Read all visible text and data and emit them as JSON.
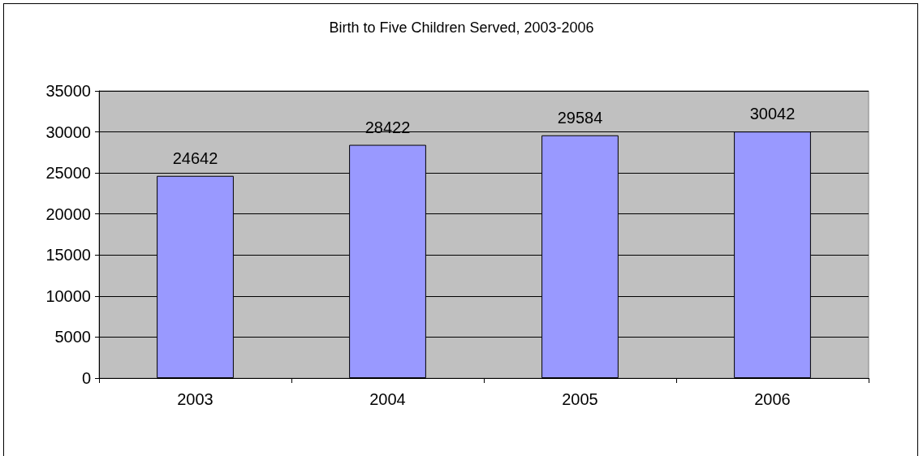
{
  "chart_data": {
    "type": "bar",
    "title": "Birth to Five Children Served, 2003-2006",
    "categories": [
      "2003",
      "2004",
      "2005",
      "2006"
    ],
    "values": [
      24642,
      28422,
      29584,
      30042
    ],
    "color": "#9999ff",
    "ylim": [
      0,
      35000
    ],
    "yticks": [
      0,
      5000,
      10000,
      15000,
      20000,
      25000,
      30000,
      35000
    ],
    "grid": "y",
    "data_labels": true
  }
}
